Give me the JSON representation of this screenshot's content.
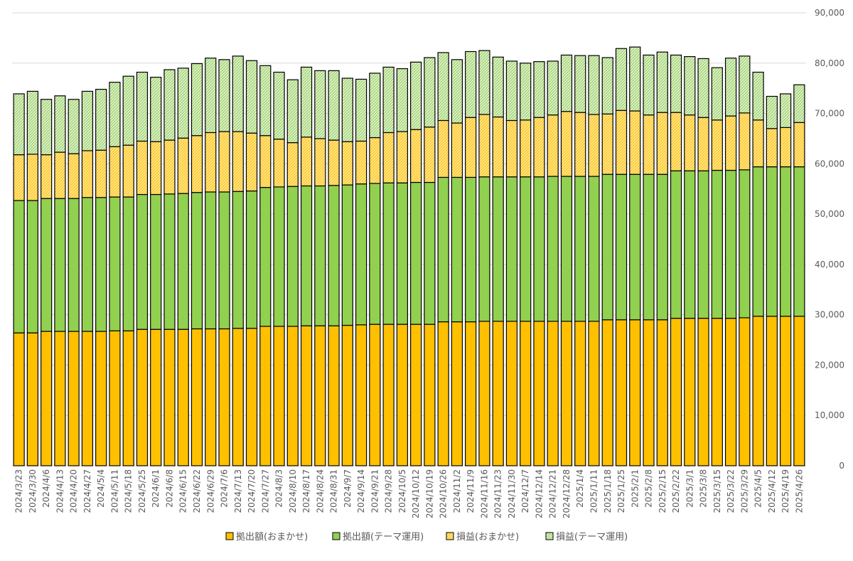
{
  "chart_data": {
    "type": "bar",
    "stacked": true,
    "categories": [
      "2024/3/23",
      "2024/3/30",
      "2024/4/6",
      "2024/4/13",
      "2024/4/20",
      "2024/4/27",
      "2024/5/4",
      "2024/5/11",
      "2024/5/18",
      "2024/5/25",
      "2024/6/1",
      "2024/6/8",
      "2024/6/15",
      "2024/6/22",
      "2024/6/29",
      "2024/7/6",
      "2024/7/13",
      "2024/7/20",
      "2024/7/27",
      "2024/8/3",
      "2024/8/10",
      "2024/8/17",
      "2024/8/24",
      "2024/8/31",
      "2024/9/7",
      "2024/9/14",
      "2024/9/21",
      "2024/9/28",
      "2024/10/5",
      "2024/10/12",
      "2024/10/19",
      "2024/10/26",
      "2024/11/2",
      "2024/11/9",
      "2024/11/16",
      "2024/11/23",
      "2024/11/30",
      "2024/12/7",
      "2024/12/14",
      "2024/12/21",
      "2024/12/28",
      "2025/1/4",
      "2025/1/11",
      "2025/1/18",
      "2025/1/25",
      "2025/2/1",
      "2025/2/8",
      "2025/2/15",
      "2025/2/22",
      "2025/3/1",
      "2025/3/8",
      "2025/3/15",
      "2025/3/22",
      "2025/3/29",
      "2025/4/5",
      "2025/4/12",
      "2025/4/19",
      "2025/4/26"
    ],
    "series": [
      {
        "name": "拠出額(おまかせ)",
        "color": "#FFC000",
        "pattern": "solid",
        "values": [
          26400,
          26400,
          26700,
          26700,
          26700,
          26700,
          26700,
          26800,
          26800,
          27100,
          27100,
          27100,
          27100,
          27200,
          27200,
          27200,
          27300,
          27300,
          27700,
          27700,
          27700,
          27800,
          27800,
          27800,
          27900,
          28000,
          28100,
          28100,
          28100,
          28100,
          28100,
          28600,
          28600,
          28600,
          28700,
          28700,
          28700,
          28700,
          28700,
          28700,
          28700,
          28700,
          28700,
          29000,
          29000,
          29000,
          29000,
          29000,
          29300,
          29300,
          29300,
          29300,
          29300,
          29400,
          29700,
          29700,
          29700,
          29700
        ]
      },
      {
        "name": "拠出額(テーマ運用)",
        "color": "#92D050",
        "pattern": "solid",
        "values": [
          26300,
          26300,
          26400,
          26400,
          26400,
          26600,
          26600,
          26600,
          26600,
          26800,
          26800,
          26900,
          27000,
          27100,
          27200,
          27200,
          27200,
          27300,
          27600,
          27700,
          27800,
          27800,
          27800,
          27900,
          27900,
          28000,
          28000,
          28100,
          28100,
          28200,
          28200,
          28700,
          28700,
          28700,
          28700,
          28700,
          28700,
          28700,
          28700,
          28800,
          28800,
          28800,
          28800,
          28900,
          28900,
          28900,
          28900,
          28900,
          29300,
          29300,
          29300,
          29400,
          29400,
          29400,
          29700,
          29700,
          29700,
          29700
        ]
      },
      {
        "name": "損益(おまかせ)",
        "color": "#FFC000",
        "pattern": "hatch",
        "values": [
          9100,
          9200,
          8700,
          9200,
          8900,
          9300,
          9400,
          10000,
          10300,
          10600,
          10500,
          10700,
          11000,
          11300,
          11800,
          12000,
          11900,
          11500,
          10300,
          9500,
          8700,
          9700,
          9400,
          9000,
          8600,
          8500,
          9100,
          10000,
          10200,
          10500,
          11000,
          11300,
          10800,
          11900,
          12400,
          11900,
          11200,
          11300,
          11800,
          12200,
          12900,
          12700,
          12300,
          12000,
          12700,
          12600,
          11800,
          12300,
          11600,
          11100,
          10600,
          10000,
          10800,
          11300,
          9300,
          7600,
          7800,
          8800
        ]
      },
      {
        "name": "損益(テーマ運用)",
        "color": "#92D050",
        "pattern": "hatch",
        "values": [
          12100,
          12500,
          11000,
          11200,
          10800,
          11800,
          12100,
          12800,
          13700,
          13700,
          12800,
          14000,
          13900,
          14300,
          14800,
          14300,
          15000,
          14400,
          13900,
          13300,
          12500,
          13900,
          13500,
          13800,
          12600,
          12300,
          12800,
          13000,
          12500,
          13400,
          13800,
          13500,
          12600,
          13100,
          12700,
          11900,
          11800,
          11300,
          11100,
          10700,
          11200,
          11300,
          11700,
          11200,
          12300,
          12700,
          11900,
          12000,
          11400,
          11600,
          11700,
          10400,
          11500,
          11300,
          9500,
          6400,
          6700,
          7500
        ]
      }
    ],
    "ylim": [
      0,
      90000
    ],
    "yticks": [
      "0",
      "10,000",
      "20,000",
      "30,000",
      "40,000",
      "50,000",
      "60,000",
      "70,000",
      "80,000",
      "90,000"
    ],
    "grid": true,
    "legend": "bottom",
    "title": "",
    "xlabel": "",
    "ylabel": ""
  }
}
